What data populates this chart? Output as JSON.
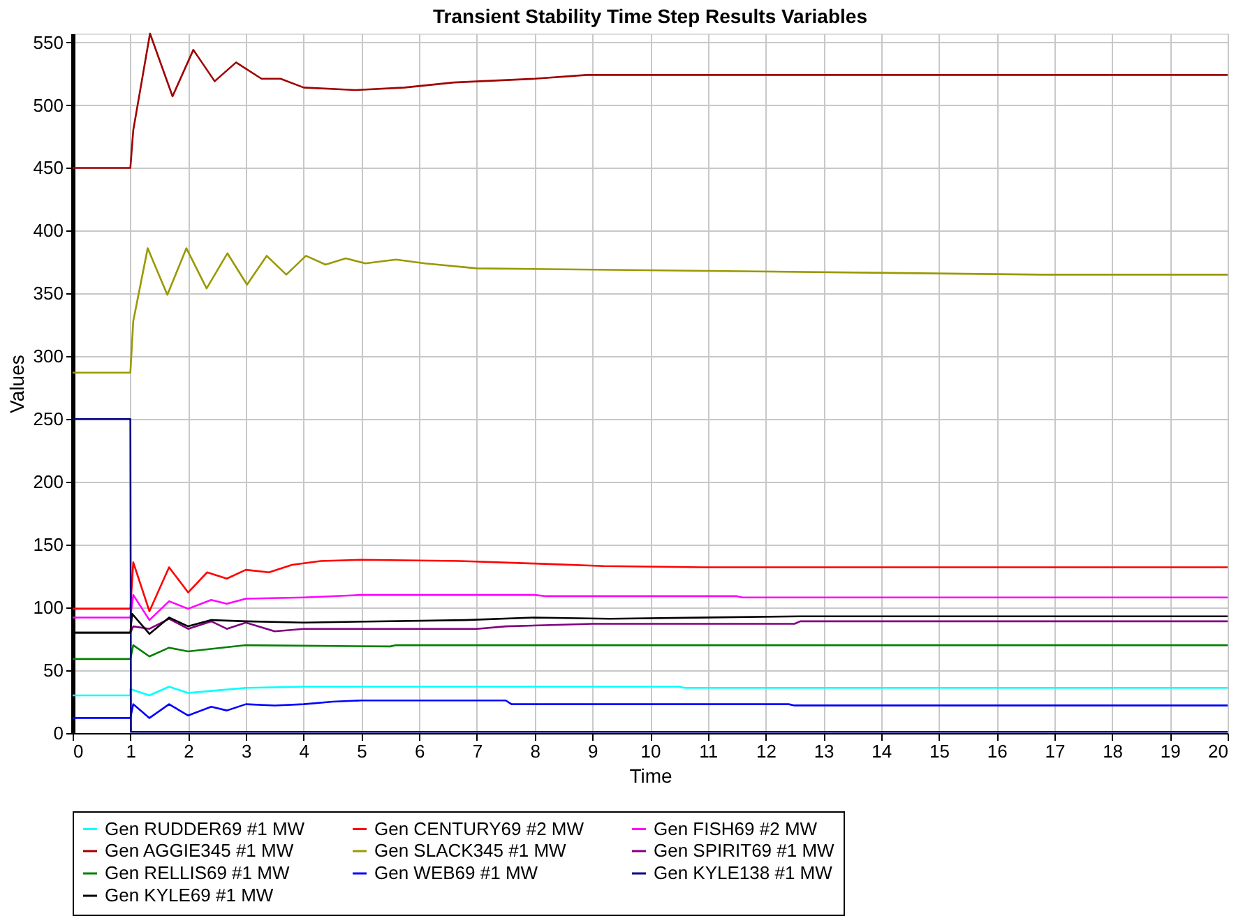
{
  "chart_data": {
    "type": "line",
    "title": "Transient Stability Time Step Results Variables",
    "xlabel": "Time",
    "ylabel": "Values",
    "xlim": [
      0,
      20
    ],
    "ylim": [
      0,
      557
    ],
    "xticks": [
      0,
      1,
      2,
      3,
      4,
      5,
      6,
      7,
      8,
      9,
      10,
      11,
      12,
      13,
      14,
      15,
      16,
      17,
      18,
      19,
      20
    ],
    "yticks": [
      0,
      50,
      100,
      150,
      200,
      250,
      300,
      350,
      400,
      450,
      500,
      550
    ],
    "grid": true,
    "legend": "bottom",
    "line_style": "solid",
    "marker": "none",
    "series": [
      {
        "name": "Gen RUDDER69 #1 MW",
        "color": "#00ffff",
        "x": [
          0,
          1,
          1,
          1.33,
          1.67,
          2.0,
          2.5,
          3.0,
          4,
          10.5,
          10.6,
          20
        ],
        "values": [
          30,
          30,
          35,
          30,
          37,
          32,
          34,
          36,
          37,
          37,
          36,
          36
        ]
      },
      {
        "name": "Gen CENTURY69 #2 MW",
        "color": "#ff0000",
        "x": [
          0,
          1,
          1.05,
          1.33,
          1.67,
          2.0,
          2.33,
          2.67,
          3.0,
          3.4,
          3.8,
          4.3,
          5,
          6.7,
          8,
          9.2,
          10.9,
          20
        ],
        "values": [
          99,
          99,
          136,
          97,
          132,
          112,
          128,
          123,
          130,
          128,
          134,
          137,
          138,
          137,
          135,
          133,
          132,
          132
        ]
      },
      {
        "name": "Gen FISH69 #2 MW",
        "color": "#ff00ff",
        "x": [
          0,
          1,
          1.05,
          1.33,
          1.67,
          2.0,
          2.4,
          2.67,
          3.0,
          4,
          5,
          8,
          8.2,
          11.5,
          11.6,
          20
        ],
        "values": [
          92,
          92,
          110,
          90,
          105,
          99,
          106,
          103,
          107,
          108,
          110,
          110,
          109,
          109,
          108,
          108
        ]
      },
      {
        "name": "Gen AGGIE345 #1 MW",
        "color": "#a00000",
        "x": [
          0,
          1,
          1.05,
          1.34,
          1.73,
          2.09,
          2.46,
          2.83,
          3.27,
          3.6,
          4.0,
          4.9,
          5.75,
          6.6,
          8.0,
          8.9,
          20
        ],
        "values": [
          450,
          450,
          480,
          557,
          507,
          544,
          519,
          534,
          521,
          521,
          514,
          512,
          514,
          518,
          521,
          524,
          524
        ]
      },
      {
        "name": "Gen SLACK345 #1 MW",
        "color": "#999900",
        "x": [
          0,
          1,
          1.05,
          1.3,
          1.64,
          1.97,
          2.32,
          2.68,
          3.02,
          3.36,
          3.7,
          4.04,
          4.38,
          4.73,
          5.07,
          5.6,
          6.1,
          7.0,
          11,
          16.8,
          20
        ],
        "values": [
          287,
          287,
          328,
          386,
          349,
          386,
          354,
          382,
          357,
          380,
          365,
          380,
          373,
          378,
          374,
          377,
          374,
          370,
          368,
          365,
          365
        ]
      },
      {
        "name": "Gen SPIRIT69 #1 MW",
        "color": "#800080",
        "x": [
          0,
          1,
          1.05,
          1.33,
          1.67,
          2.0,
          2.4,
          2.67,
          3.0,
          3.5,
          4,
          5,
          7,
          7.5,
          9,
          12.5,
          12.6,
          20
        ],
        "values": [
          80,
          80,
          85,
          83,
          91,
          83,
          89,
          83,
          88,
          81,
          83,
          83,
          83,
          85,
          87,
          87,
          89,
          89
        ]
      },
      {
        "name": "Gen RELLIS69 #1 MW",
        "color": "#008000",
        "x": [
          0,
          1,
          1.05,
          1.33,
          1.67,
          2.0,
          3.0,
          5.5,
          5.6,
          20
        ],
        "values": [
          59,
          59,
          70,
          61,
          68,
          65,
          70,
          69,
          70,
          70
        ]
      },
      {
        "name": "Gen WEB69 #1 MW",
        "color": "#0000ff",
        "x": [
          0,
          1,
          1.05,
          1.33,
          1.67,
          2.0,
          2.4,
          2.67,
          3.0,
          3.5,
          4,
          4.5,
          5,
          7.5,
          7.6,
          12.4,
          12.5,
          20
        ],
        "values": [
          12,
          12,
          23,
          12,
          23,
          14,
          21,
          18,
          23,
          22,
          23,
          25,
          26,
          26,
          23,
          23,
          22,
          22
        ]
      },
      {
        "name": "Gen KYLE138 #1 MW",
        "color": "#000080",
        "x": [
          0,
          1,
          1.01,
          20
        ],
        "values": [
          250,
          250,
          1,
          1
        ]
      },
      {
        "name": "Gen KYLE69 #1 MW",
        "color": "#000000",
        "x": [
          0,
          1,
          1.03,
          1.33,
          1.67,
          2.0,
          2.4,
          3.0,
          4,
          6.8,
          8,
          9.3,
          12.6,
          20
        ],
        "values": [
          80,
          80,
          95,
          79,
          92,
          85,
          90,
          89,
          88,
          90,
          92,
          91,
          93,
          93
        ]
      }
    ]
  }
}
